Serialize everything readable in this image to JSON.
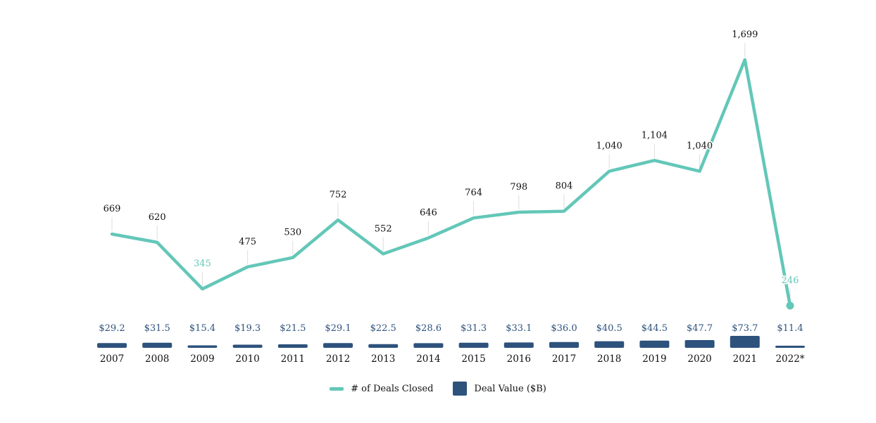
{
  "chart_data": {
    "type": "bar+line",
    "categories": [
      "2007",
      "2008",
      "2009",
      "2010",
      "2011",
      "2012",
      "2013",
      "2014",
      "2015",
      "2016",
      "2017",
      "2018",
      "2019",
      "2020",
      "2021",
      "2022*"
    ],
    "series": [
      {
        "name": "# of Deals Closed",
        "type": "line",
        "color": "#63c7b8",
        "values": [
          669,
          620,
          345,
          475,
          530,
          752,
          552,
          646,
          764,
          798,
          804,
          1040,
          1104,
          1040,
          1699,
          246
        ],
        "labels": [
          "669",
          "620",
          "345",
          "475",
          "530",
          "752",
          "552",
          "646",
          "764",
          "798",
          "804",
          "1,040",
          "1,104",
          "1,040",
          "1,699",
          "246"
        ],
        "highlight_label_indices": [
          2,
          15
        ]
      },
      {
        "name": "Deal Value ($B)",
        "type": "bar",
        "color": "#2d527c",
        "values": [
          29.2,
          31.5,
          15.4,
          19.3,
          21.5,
          29.1,
          22.5,
          28.6,
          31.3,
          33.1,
          36.0,
          40.5,
          44.5,
          47.7,
          73.7,
          11.4
        ],
        "labels": [
          "$29.2",
          "$31.5",
          "$15.4",
          "$19.3",
          "$21.5",
          "$29.1",
          "$22.5",
          "$28.6",
          "$31.3",
          "$33.1",
          "$36.0",
          "$40.5",
          "$44.5",
          "$47.7",
          "$73.7",
          "$11.4"
        ]
      }
    ],
    "legend_position": "bottom-center",
    "grid": false
  },
  "legend": {
    "deals_label": "# of Deals Closed",
    "value_label": "Deal Value ($B)"
  }
}
